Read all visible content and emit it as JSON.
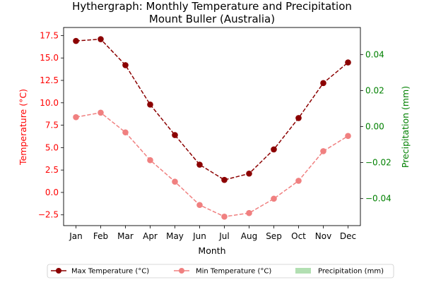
{
  "chart_data": {
    "type": "line",
    "title": "Hythergraph: Monthly Temperature and Precipitation",
    "subtitle": "Mount Buller (Australia)",
    "xlabel": "Month",
    "ylabel_left": "Temperature (°C)",
    "ylabel_right": "Precipitation (mm)",
    "categories": [
      "Jan",
      "Feb",
      "Mar",
      "Apr",
      "May",
      "Jun",
      "Jul",
      "Aug",
      "Sep",
      "Oct",
      "Nov",
      "Dec"
    ],
    "ylim_left": [
      -3.7,
      18.4
    ],
    "ylim_right": [
      -0.055,
      0.055
    ],
    "left_ticks": [
      "−2.5",
      "0.0",
      "2.5",
      "5.0",
      "7.5",
      "10.0",
      "12.5",
      "15.0",
      "17.5"
    ],
    "left_tick_values": [
      -2.5,
      0,
      2.5,
      5,
      7.5,
      10,
      12.5,
      15,
      17.5
    ],
    "right_ticks": [
      "−0.04",
      "−0.02",
      "0.00",
      "0.02",
      "0.04"
    ],
    "right_tick_values": [
      -0.04,
      -0.02,
      0,
      0.02,
      0.04
    ],
    "series": [
      {
        "name": "Max Temperature (°C)",
        "color": "#8b0000",
        "line_style": "dashed",
        "marker": "circle",
        "values": [
          16.9,
          17.1,
          14.2,
          9.8,
          6.4,
          3.1,
          1.4,
          2.1,
          4.8,
          8.3,
          12.2,
          14.5
        ]
      },
      {
        "name": "Min Temperature (°C)",
        "color": "#f08080",
        "line_style": "dashed",
        "marker": "circle",
        "values": [
          8.4,
          8.9,
          6.7,
          3.6,
          1.2,
          -1.4,
          -2.7,
          -2.3,
          -0.7,
          1.3,
          4.6,
          6.3
        ]
      }
    ],
    "bar_series": {
      "name": "Precipitation (mm)",
      "color": "#b2dfb2",
      "values": []
    },
    "left_axis_color": "#ff0000",
    "right_axis_color": "#008000",
    "grid": false,
    "legend_position": "bottom"
  }
}
